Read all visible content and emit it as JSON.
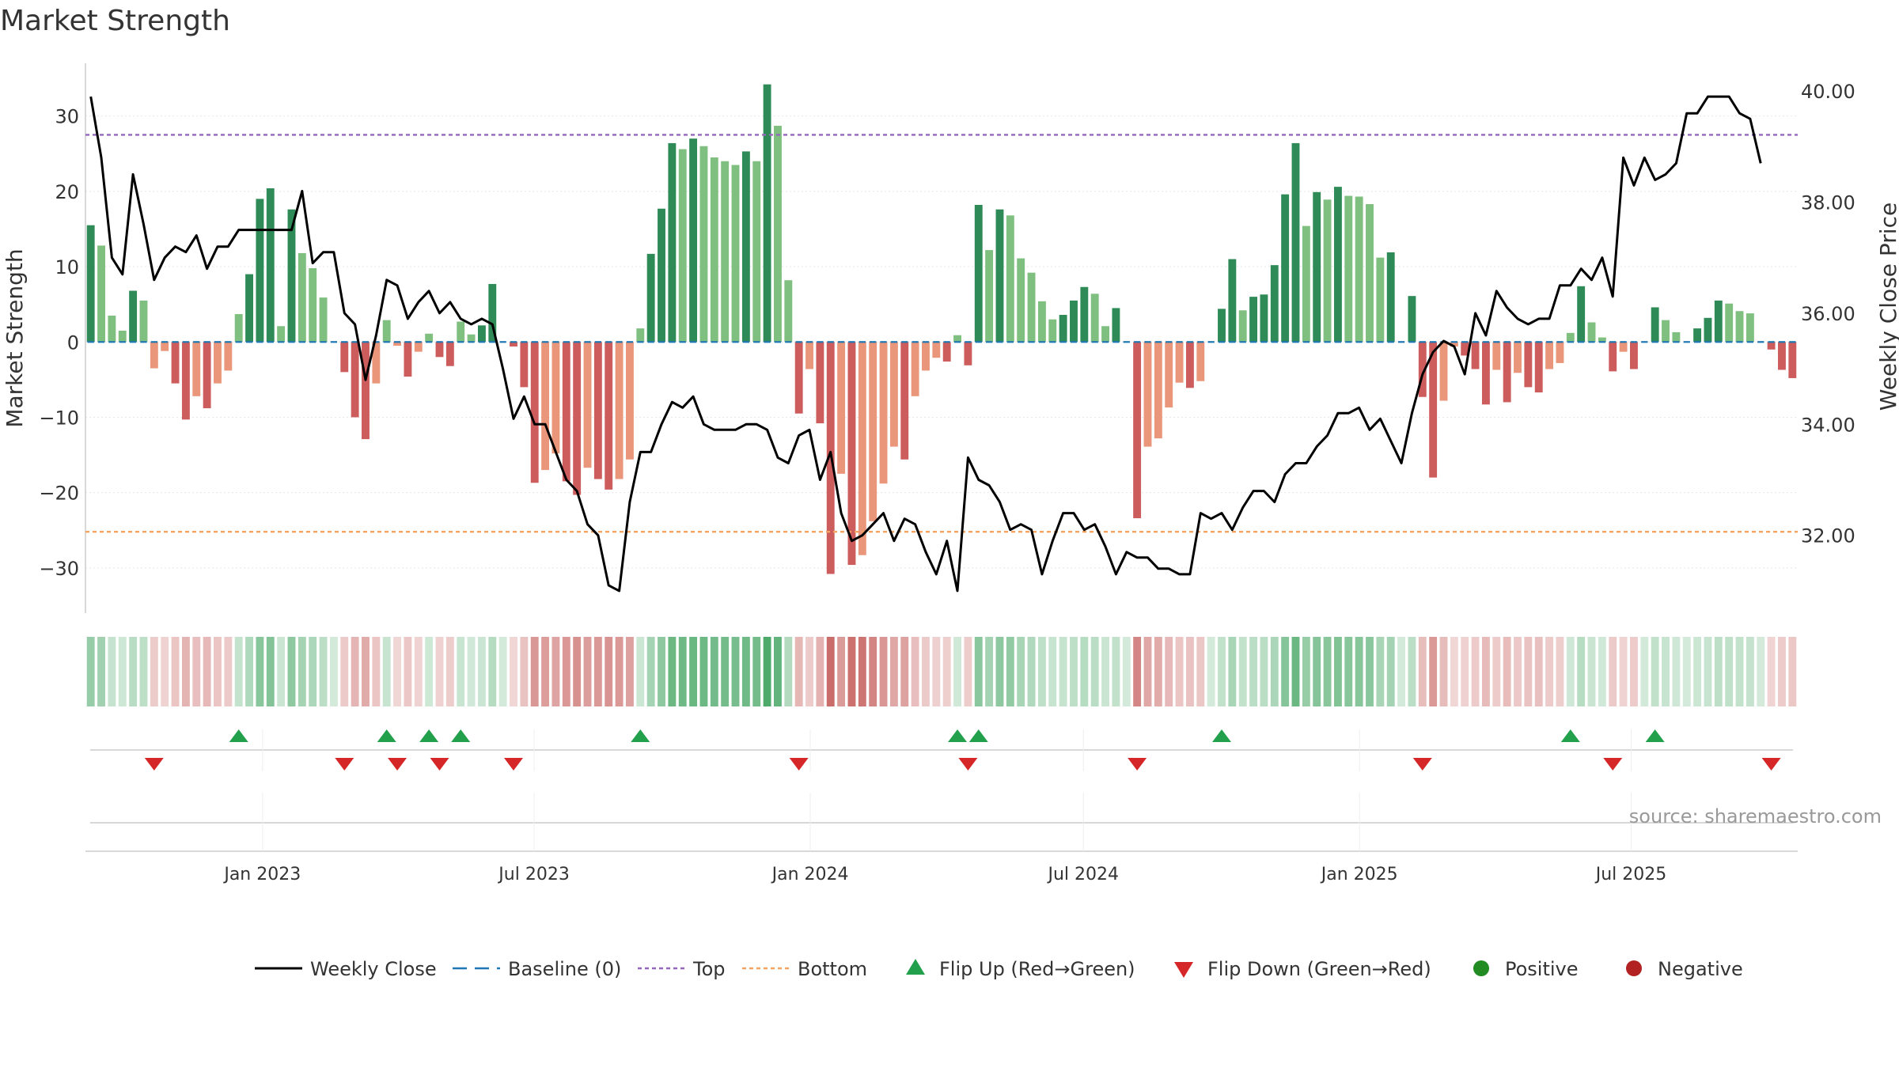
{
  "chart_data": {
    "type": "bar",
    "title": "Market Strength",
    "ylabel": "Market Strength",
    "y2label": "Weekly Close Price",
    "ylim": [
      -36,
      37
    ],
    "y2lim": [
      30.6,
      40.5
    ],
    "yticks": [
      30,
      20,
      10,
      0,
      -10,
      -20,
      -30
    ],
    "ytick_labels": [
      "30",
      "20",
      "10",
      "0",
      "−10",
      "−20",
      "−30"
    ],
    "y2ticks": [
      40,
      38,
      36,
      34,
      32
    ],
    "y2tick_labels": [
      "40.00",
      "38.00",
      "36.00",
      "34.00",
      "32.00"
    ],
    "top_level": 27.5,
    "bottom_level": -25.2,
    "x_axis": {
      "start": "2022-09-05",
      "end": "2025-10-20",
      "ticks": [
        {
          "date": "2023-01-01",
          "label": "Jan 2023"
        },
        {
          "date": "2023-07-01",
          "label": "Jul 2023"
        },
        {
          "date": "2024-01-01",
          "label": "Jan 2024"
        },
        {
          "date": "2024-07-01",
          "label": "Jul 2024"
        },
        {
          "date": "2025-01-01",
          "label": "Jan 2025"
        },
        {
          "date": "2025-07-01",
          "label": "Jul 2025"
        }
      ]
    },
    "strength": [
      15.5,
      12.8,
      3.5,
      1.5,
      6.8,
      5.5,
      -3.5,
      -1.2,
      -5.5,
      -10.3,
      -7.2,
      -8.8,
      -5.5,
      -3.8,
      3.7,
      9,
      19,
      20.4,
      2.1,
      17.6,
      11.8,
      9.8,
      5.9,
      0,
      -4,
      -10,
      -12.9,
      -5.5,
      2.9,
      -0.5,
      -4.6,
      -1.3,
      1.1,
      -2,
      -3.2,
      2.7,
      1,
      2.2,
      7.7,
      0,
      -0.6,
      -6,
      -18.7,
      -17,
      -14.8,
      -18.5,
      -20.3,
      -16.7,
      -18.2,
      -19.6,
      -18.2,
      -15.6,
      1.8,
      11.7,
      17.7,
      26.4,
      25.6,
      27,
      26,
      24.5,
      24,
      23.5,
      25.3,
      24,
      34.2,
      28.7,
      8.2,
      -9.5,
      -3.6,
      -10.8,
      -30.8,
      -17.5,
      -29.6,
      -28.3,
      -23.8,
      -18.8,
      -13.9,
      -15.6,
      -7.2,
      -3.8,
      -2.1,
      -2.6,
      0.9,
      -3.1,
      18.2,
      12.2,
      17.6,
      16.8,
      11.1,
      9.2,
      5.4,
      3,
      3.6,
      5.5,
      7.3,
      6.4,
      2.1,
      4.5,
      0,
      -23.4,
      -13.9,
      -12.8,
      -8.7,
      -5.4,
      -6.1,
      -5.2,
      0,
      4.4,
      11,
      4.2,
      6,
      6.3,
      10.2,
      19.6,
      26.4,
      15.4,
      19.9,
      18.9,
      20.6,
      19.4,
      19.3,
      18.3,
      11.2,
      11.9,
      0,
      6.1,
      -7.3,
      -18,
      -7.8,
      -0.6,
      -1.8,
      -3.6,
      -8.3,
      -3.7,
      -8,
      -4.1,
      -6,
      -6.7,
      -3.6,
      -2.8,
      1.2,
      7.4,
      2.6,
      0.6,
      -3.9,
      -1.3,
      -3.6,
      0,
      4.6,
      2.9,
      1.3,
      0,
      1.8,
      3.2,
      5.5,
      5.1,
      4.1,
      3.8,
      0,
      -1,
      -3.7,
      -4.8
    ],
    "weekly_close": [
      39.9,
      38.8,
      37,
      36.7,
      38.5,
      37.6,
      36.6,
      37,
      37.2,
      37.1,
      37.4,
      36.8,
      37.2,
      37.2,
      37.5,
      37.5,
      37.5,
      37.5,
      37.5,
      37.5,
      38.2,
      36.9,
      37.1,
      37.1,
      36,
      35.8,
      34.8,
      35.6,
      36.6,
      36.5,
      35.9,
      36.2,
      36.4,
      36,
      36.2,
      35.9,
      35.8,
      35.9,
      35.8,
      35,
      34.1,
      34.5,
      34,
      34,
      33.5,
      33,
      32.8,
      32.2,
      32,
      31.1,
      31,
      32.6,
      33.5,
      33.5,
      34,
      34.4,
      34.3,
      34.5,
      34,
      33.9,
      33.9,
      33.9,
      34,
      34,
      33.9,
      33.4,
      33.3,
      33.8,
      33.9,
      33,
      33.5,
      32.4,
      31.9,
      32,
      32.2,
      32.4,
      31.9,
      32.3,
      32.2,
      31.7,
      31.3,
      31.9,
      31,
      33.4,
      33,
      32.9,
      32.6,
      32.1,
      32.2,
      32.1,
      31.3,
      31.9,
      32.4,
      32.4,
      32.1,
      32.2,
      31.8,
      31.3,
      31.7,
      31.6,
      31.6,
      31.4,
      31.4,
      31.3,
      31.3,
      32.4,
      32.3,
      32.4,
      32.1,
      32.5,
      32.8,
      32.8,
      32.6,
      33.1,
      33.3,
      33.3,
      33.6,
      33.8,
      34.2,
      34.2,
      34.3,
      33.9,
      34.1,
      33.7,
      33.3,
      34.2,
      34.9,
      35.3,
      35.5,
      35.4,
      34.9,
      36,
      35.6,
      36.4,
      36.1,
      35.9,
      35.8,
      35.9,
      35.9,
      36.5,
      36.5,
      36.8,
      36.6,
      37,
      36.3,
      38.8,
      38.3,
      38.8,
      38.4,
      38.5,
      38.7,
      39.6,
      39.6,
      39.9,
      39.9,
      39.9,
      39.6,
      39.5,
      38.7
    ],
    "legend": {
      "position": "bottom",
      "entries": [
        {
          "key": "close",
          "label": "Weekly Close"
        },
        {
          "key": "baseline",
          "label": "Baseline (0)"
        },
        {
          "key": "top",
          "label": "Top"
        },
        {
          "key": "bottom",
          "label": "Bottom"
        },
        {
          "key": "flip_up",
          "label": "Flip Up (Red→Green)"
        },
        {
          "key": "flip_down",
          "label": "Flip Down (Green→Red)"
        },
        {
          "key": "positive",
          "label": "Positive"
        },
        {
          "key": "negative",
          "label": "Negative"
        }
      ]
    },
    "source": "source: sharemaestro.com",
    "colors": {
      "pos_strong": "#2e8b57",
      "pos_light": "#7fbf7f",
      "neg_strong": "#cd5c5c",
      "neg_light": "#e9967a",
      "close": "#000000",
      "baseline": "#1f77b4",
      "top": "#9467bd",
      "bottom": "#f4a460",
      "flip_up": "#22a04b",
      "flip_down": "#d62728",
      "positive": "#228b22",
      "negative": "#b22222",
      "grid": "#e6e6e6",
      "axis": "#cccccc",
      "text": "#333333"
    }
  }
}
